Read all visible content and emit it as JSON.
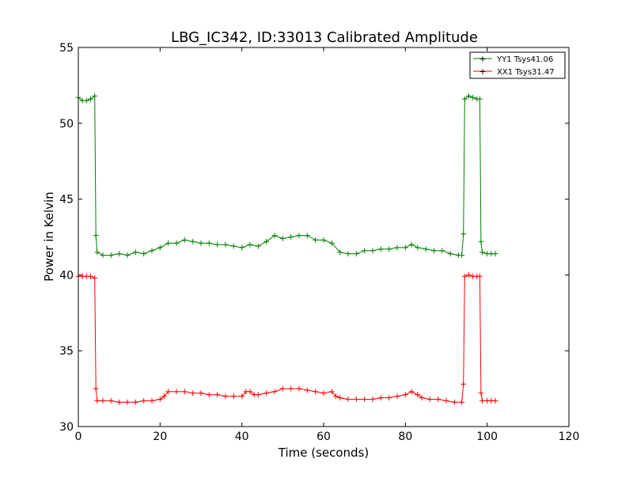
{
  "chart_data": {
    "type": "line",
    "title": "LBG_IC342, ID:33013 Calibrated Amplitude",
    "xlabel": "Time (seconds)",
    "ylabel": "Power in Kelvin",
    "xlim": [
      0,
      120
    ],
    "ylim": [
      30,
      55
    ],
    "x_ticks": [
      0,
      20,
      40,
      60,
      80,
      100,
      120
    ],
    "y_ticks": [
      30,
      35,
      40,
      45,
      50,
      55
    ],
    "grid": false,
    "legend_position": "top-right",
    "series": [
      {
        "name": "YY1 Tsys41.06",
        "color": "#008000",
        "marker": "+",
        "points": [
          [
            0,
            51.7
          ],
          [
            1,
            51.5
          ],
          [
            2,
            51.5
          ],
          [
            3,
            51.6
          ],
          [
            4,
            51.8
          ],
          [
            4.3,
            42.6
          ],
          [
            4.6,
            41.5
          ],
          [
            6,
            41.3
          ],
          [
            8,
            41.3
          ],
          [
            10,
            41.4
          ],
          [
            12,
            41.3
          ],
          [
            14,
            41.5
          ],
          [
            16,
            41.4
          ],
          [
            18,
            41.6
          ],
          [
            20,
            41.8
          ],
          [
            22,
            42.1
          ],
          [
            24,
            42.1
          ],
          [
            26,
            42.3
          ],
          [
            28,
            42.2
          ],
          [
            30,
            42.1
          ],
          [
            32,
            42.1
          ],
          [
            34,
            42.0
          ],
          [
            36,
            42.0
          ],
          [
            38,
            41.9
          ],
          [
            40,
            41.8
          ],
          [
            42,
            42.0
          ],
          [
            44,
            41.9
          ],
          [
            46,
            42.2
          ],
          [
            48,
            42.6
          ],
          [
            50,
            42.4
          ],
          [
            52,
            42.5
          ],
          [
            54,
            42.6
          ],
          [
            56,
            42.6
          ],
          [
            58,
            42.3
          ],
          [
            60,
            42.3
          ],
          [
            62,
            42.1
          ],
          [
            64,
            41.5
          ],
          [
            66,
            41.4
          ],
          [
            68,
            41.4
          ],
          [
            70,
            41.6
          ],
          [
            72,
            41.6
          ],
          [
            74,
            41.7
          ],
          [
            76,
            41.7
          ],
          [
            78,
            41.8
          ],
          [
            80,
            41.8
          ],
          [
            81.5,
            42.0
          ],
          [
            83,
            41.8
          ],
          [
            85,
            41.7
          ],
          [
            87,
            41.6
          ],
          [
            89,
            41.6
          ],
          [
            91,
            41.4
          ],
          [
            93,
            41.3
          ],
          [
            93.8,
            41.3
          ],
          [
            94.2,
            42.7
          ],
          [
            94.5,
            51.6
          ],
          [
            95.5,
            51.8
          ],
          [
            96.5,
            51.7
          ],
          [
            97.5,
            51.6
          ],
          [
            98.2,
            51.6
          ],
          [
            98.5,
            42.2
          ],
          [
            98.8,
            41.5
          ],
          [
            100,
            41.4
          ],
          [
            101,
            41.4
          ],
          [
            102,
            41.4
          ]
        ]
      },
      {
        "name": "XX1 Tsys31.47",
        "color": "#ff0000",
        "marker": "+",
        "points": [
          [
            0,
            39.9
          ],
          [
            1,
            39.9
          ],
          [
            2,
            39.9
          ],
          [
            3,
            39.9
          ],
          [
            4,
            39.8
          ],
          [
            4.3,
            32.5
          ],
          [
            4.6,
            31.7
          ],
          [
            6,
            31.7
          ],
          [
            8,
            31.7
          ],
          [
            10,
            31.6
          ],
          [
            12,
            31.6
          ],
          [
            14,
            31.6
          ],
          [
            16,
            31.7
          ],
          [
            18,
            31.7
          ],
          [
            20,
            31.8
          ],
          [
            21,
            32.0
          ],
          [
            22,
            32.3
          ],
          [
            24,
            32.3
          ],
          [
            26,
            32.3
          ],
          [
            28,
            32.2
          ],
          [
            30,
            32.2
          ],
          [
            32,
            32.1
          ],
          [
            34,
            32.1
          ],
          [
            36,
            32.0
          ],
          [
            38,
            32.0
          ],
          [
            40,
            32.0
          ],
          [
            41,
            32.3
          ],
          [
            42,
            32.3
          ],
          [
            43,
            32.1
          ],
          [
            44,
            32.1
          ],
          [
            46,
            32.2
          ],
          [
            48,
            32.3
          ],
          [
            50,
            32.5
          ],
          [
            52,
            32.5
          ],
          [
            54,
            32.5
          ],
          [
            56,
            32.4
          ],
          [
            58,
            32.3
          ],
          [
            60,
            32.2
          ],
          [
            62,
            32.3
          ],
          [
            63,
            32.0
          ],
          [
            64,
            31.9
          ],
          [
            66,
            31.8
          ],
          [
            68,
            31.8
          ],
          [
            70,
            31.8
          ],
          [
            72,
            31.8
          ],
          [
            74,
            31.9
          ],
          [
            76,
            31.9
          ],
          [
            78,
            32.0
          ],
          [
            80,
            32.1
          ],
          [
            81.5,
            32.3
          ],
          [
            83,
            32.1
          ],
          [
            84,
            31.9
          ],
          [
            86,
            31.8
          ],
          [
            88,
            31.8
          ],
          [
            90,
            31.7
          ],
          [
            92,
            31.6
          ],
          [
            93.8,
            31.6
          ],
          [
            94.2,
            32.8
          ],
          [
            94.5,
            39.9
          ],
          [
            95.5,
            40.0
          ],
          [
            96.5,
            39.9
          ],
          [
            97.5,
            39.9
          ],
          [
            98.2,
            39.9
          ],
          [
            98.5,
            32.2
          ],
          [
            98.8,
            31.7
          ],
          [
            100,
            31.7
          ],
          [
            101,
            31.7
          ],
          [
            102,
            31.7
          ]
        ]
      }
    ]
  }
}
